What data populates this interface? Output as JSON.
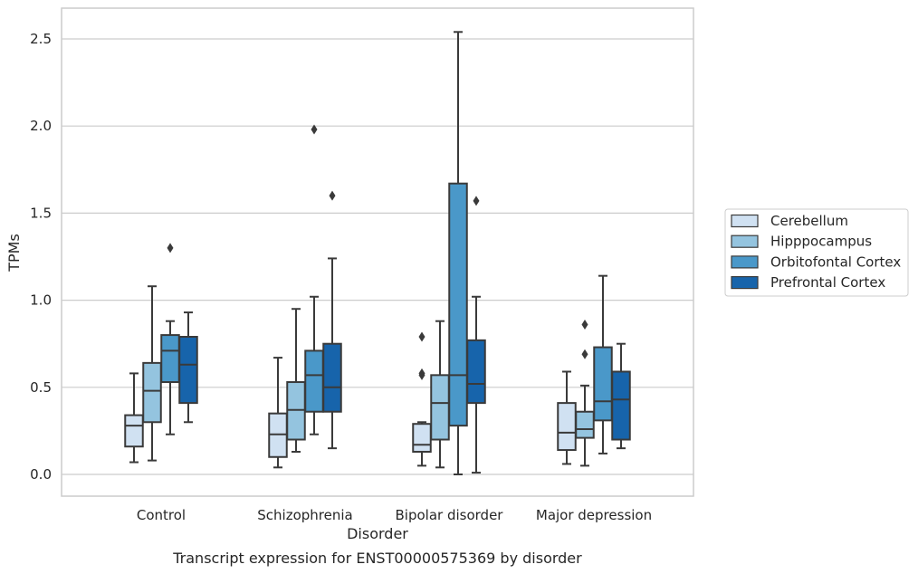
{
  "caption": "Transcript expression for ENST00000575369 by disorder",
  "chart_data": {
    "type": "box",
    "title": "",
    "xlabel": "Disorder",
    "ylabel": "TPMs",
    "ylim": [
      -0.12,
      2.67
    ],
    "yticks": [
      "0.0",
      "0.5",
      "1.0",
      "1.5",
      "2.0",
      "2.5"
    ],
    "grid": "horizontal",
    "legend_position": "right",
    "categories": [
      "Control",
      "Schizophrenia",
      "Bipolar disorder",
      "Major depression"
    ],
    "series": [
      {
        "name": "Cerebellum",
        "color": "#d0e1f2",
        "boxes": [
          {
            "min": 0.07,
            "q1": 0.16,
            "median": 0.28,
            "q3": 0.34,
            "max": 0.58,
            "outliers": []
          },
          {
            "min": 0.04,
            "q1": 0.1,
            "median": 0.23,
            "q3": 0.35,
            "max": 0.67,
            "outliers": []
          },
          {
            "min": 0.05,
            "q1": 0.13,
            "median": 0.17,
            "q3": 0.29,
            "max": 0.3,
            "outliers": [
              0.79,
              0.58,
              0.57
            ]
          },
          {
            "min": 0.06,
            "q1": 0.14,
            "median": 0.24,
            "q3": 0.41,
            "max": 0.59,
            "outliers": []
          }
        ]
      },
      {
        "name": "Hipppocampus",
        "color": "#94c4df",
        "boxes": [
          {
            "min": 0.08,
            "q1": 0.3,
            "median": 0.48,
            "q3": 0.64,
            "max": 1.08,
            "outliers": []
          },
          {
            "min": 0.13,
            "q1": 0.2,
            "median": 0.37,
            "q3": 0.53,
            "max": 0.95,
            "outliers": []
          },
          {
            "min": 0.04,
            "q1": 0.2,
            "median": 0.41,
            "q3": 0.57,
            "max": 0.88,
            "outliers": []
          },
          {
            "min": 0.05,
            "q1": 0.21,
            "median": 0.26,
            "q3": 0.36,
            "max": 0.51,
            "outliers": [
              0.86,
              0.69
            ]
          }
        ]
      },
      {
        "name": "Orbitofontal Cortex",
        "color": "#4a98c9",
        "boxes": [
          {
            "min": 0.23,
            "q1": 0.53,
            "median": 0.71,
            "q3": 0.8,
            "max": 0.88,
            "outliers": [
              1.3
            ]
          },
          {
            "min": 0.23,
            "q1": 0.36,
            "median": 0.57,
            "q3": 0.71,
            "max": 1.02,
            "outliers": [
              1.98
            ]
          },
          {
            "min": 0.0,
            "q1": 0.28,
            "median": 0.57,
            "q3": 1.67,
            "max": 2.54,
            "outliers": []
          },
          {
            "min": 0.12,
            "q1": 0.31,
            "median": 0.42,
            "q3": 0.73,
            "max": 1.14,
            "outliers": []
          }
        ]
      },
      {
        "name": "Prefrontal Cortex",
        "color": "#1764ab",
        "boxes": [
          {
            "min": 0.3,
            "q1": 0.41,
            "median": 0.63,
            "q3": 0.79,
            "max": 0.93,
            "outliers": []
          },
          {
            "min": 0.15,
            "q1": 0.36,
            "median": 0.5,
            "q3": 0.75,
            "max": 1.24,
            "outliers": [
              1.6
            ]
          },
          {
            "min": 0.01,
            "q1": 0.41,
            "median": 0.52,
            "q3": 0.77,
            "max": 1.02,
            "outliers": [
              1.57
            ]
          },
          {
            "min": 0.15,
            "q1": 0.2,
            "median": 0.43,
            "q3": 0.59,
            "max": 0.75,
            "outliers": []
          }
        ]
      }
    ]
  }
}
